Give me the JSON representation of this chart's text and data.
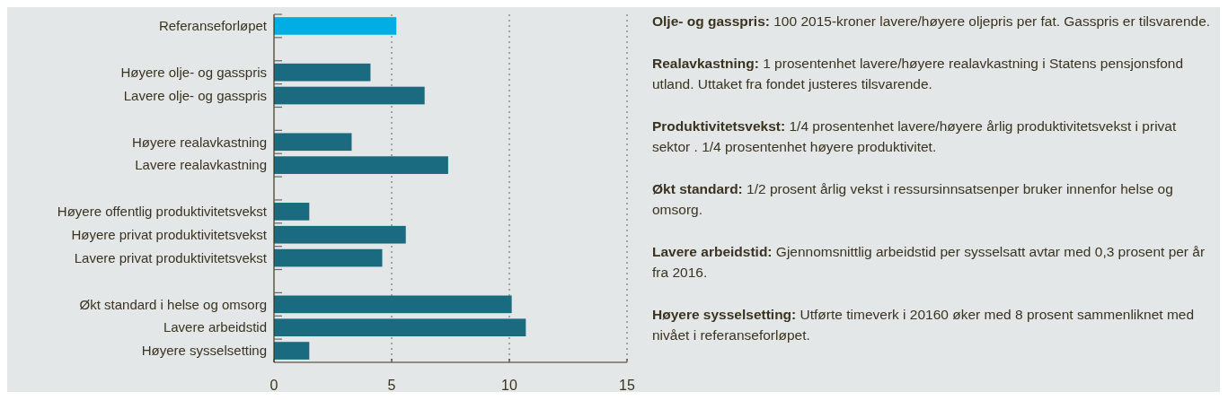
{
  "chart_data": {
    "type": "bar",
    "orientation": "horizontal",
    "categories": [
      "Referanseforløpet",
      null,
      "Høyere olje- og gasspris",
      "Lavere olje- og gasspris",
      null,
      "Høyere realavkastning",
      "Lavere realavkastning",
      null,
      "Høyere offentlig produktivitetsvekst",
      "Høyere privat produktivitetsvekst",
      "Lavere privat produktivitetsvekst",
      null,
      "Økt standard i helse og omsorg",
      "Lavere arbeidstid",
      "Høyere sysselsetting"
    ],
    "values": [
      5.2,
      null,
      4.1,
      6.4,
      null,
      3.3,
      7.4,
      null,
      1.5,
      5.6,
      4.6,
      null,
      10.1,
      10.7,
      1.5
    ],
    "colors": [
      "#00aee3",
      null,
      "#1a6a80",
      "#1a6a80",
      null,
      "#1a6a80",
      "#1a6a80",
      null,
      "#1a6a80",
      "#1a6a80",
      "#1a6a80",
      null,
      "#1a6a80",
      "#1a6a80",
      "#1a6a80"
    ],
    "xlim": [
      0,
      15
    ],
    "xticks": [
      0,
      5,
      10,
      15
    ],
    "grid": "x",
    "annotations": [
      "Olje- og gasspris: 100 2015-kroner lavere/høyere oljepris per fat. Gasspris er tilsvarende.",
      "Realavkastning: 1 prosentenhet lavere/høyere realavkastning i Statens pensjonsfond utland. Uttaket fra fondet justeres tilsvarende.",
      "Produktivitetsvekst: 1/4 prosentenhet lavere/høyere årlig produktivitetsvekst i privat sektor . 1/4 prosentenhet høyere produktivitet.",
      "Økt standard: 1/2 prosent årlig vekst i ressursinnsatsenper bruker innenfor helse og omsorg.",
      "Lavere arbeidstid: Gjennomsnittlig arbeidstid per sysselsatt avtar med 0,3 prosent per år fra 2016.",
      "Høyere sysselsetting: Utførte timeverk i 20160 øker med 8 prosent sammenliknet med nivået i referanseforløpet."
    ]
  }
}
